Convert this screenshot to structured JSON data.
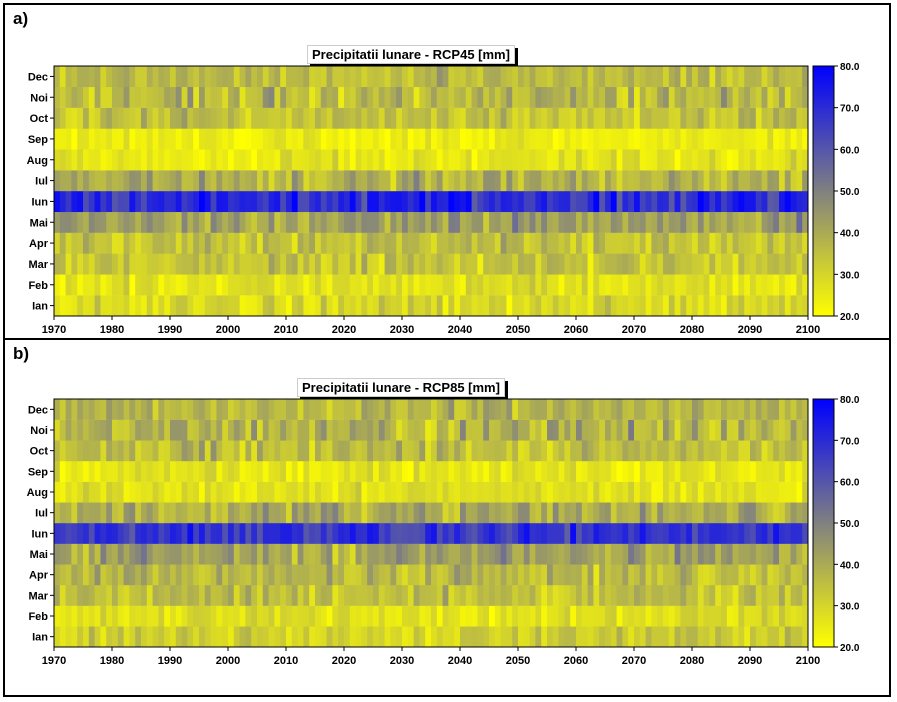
{
  "chart_data": [
    {
      "panel_label": "a)",
      "type": "heatmap",
      "title": "Precipitatii lunare - RCP45 [mm]",
      "x_range": [
        1970,
        2100
      ],
      "x_ticks": [
        1970,
        1980,
        1990,
        2000,
        2010,
        2020,
        2030,
        2040,
        2050,
        2060,
        2070,
        2080,
        2090,
        2100
      ],
      "months": [
        "Ian",
        "Feb",
        "Mar",
        "Apr",
        "Mai",
        "Iun",
        "Iul",
        "Aug",
        "Sep",
        "Oct",
        "Noi",
        "Dec"
      ],
      "month_mean_mm": [
        29,
        27,
        34,
        35,
        43,
        70,
        38,
        26,
        24,
        34,
        36,
        36
      ],
      "month_spread_mm": [
        6,
        5,
        7,
        7,
        8,
        10,
        8,
        5,
        4,
        7,
        9,
        7
      ],
      "seed": 45,
      "colorbar": {
        "min": 20,
        "max": 80,
        "ticks": [
          "80.0",
          "70.0",
          "60.0",
          "50.0",
          "40.0",
          "30.0",
          "20.0"
        ]
      }
    },
    {
      "panel_label": "b)",
      "type": "heatmap",
      "title": "Precipitatii lunare - RCP85 [mm]",
      "x_range": [
        1970,
        2100
      ],
      "x_ticks": [
        1970,
        1980,
        1990,
        2000,
        2010,
        2020,
        2030,
        2040,
        2050,
        2060,
        2070,
        2080,
        2090,
        2100
      ],
      "months": [
        "Ian",
        "Feb",
        "Mar",
        "Apr",
        "Mai",
        "Iun",
        "Iul",
        "Aug",
        "Sep",
        "Oct",
        "Noi",
        "Dec"
      ],
      "month_mean_mm": [
        31,
        27,
        35,
        36,
        42,
        68,
        40,
        27,
        26,
        35,
        37,
        37
      ],
      "month_spread_mm": [
        6,
        5,
        7,
        7,
        8,
        8,
        8,
        5,
        5,
        7,
        9,
        7
      ],
      "seed": 85,
      "colorbar": {
        "min": 20,
        "max": 80,
        "ticks": [
          "80.0",
          "70.0",
          "60.0",
          "50.0",
          "40.0",
          "30.0",
          "20.0"
        ]
      }
    }
  ],
  "colors": {
    "low": "#ffff00",
    "mid": "#808080",
    "high": "#0000ff"
  }
}
